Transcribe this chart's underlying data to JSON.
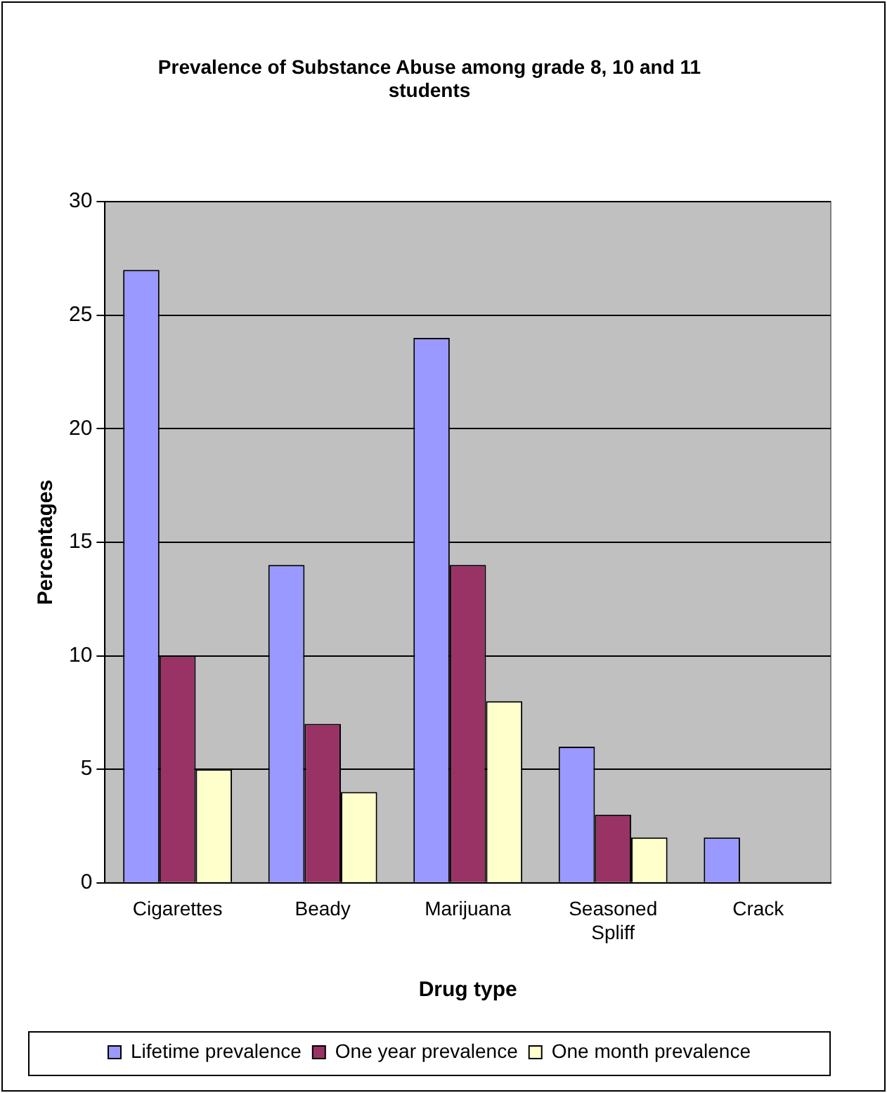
{
  "chart_data": {
    "type": "bar",
    "title": "Prevalence of Substance Abuse among grade 8, 10 and 11 students",
    "xlabel": "Drug type",
    "ylabel": "Percentages",
    "categories": [
      "Cigarettes",
      "Beady",
      "Marijuana",
      "Seasoned Spliff",
      "Crack"
    ],
    "series": [
      {
        "name": "Lifetime prevalence",
        "color": "#9999ff",
        "values": [
          27,
          14,
          24,
          6,
          2
        ]
      },
      {
        "name": "One year prevalence",
        "color": "#993366",
        "values": [
          10,
          7,
          14,
          3,
          0
        ]
      },
      {
        "name": "One month prevalence",
        "color": "#ffffcc",
        "values": [
          5,
          4,
          8,
          2,
          0
        ]
      }
    ],
    "ylim": [
      0,
      30
    ],
    "yticks": [
      0,
      5,
      10,
      15,
      20,
      25,
      30
    ],
    "grid": "y",
    "legend": "bottom"
  }
}
